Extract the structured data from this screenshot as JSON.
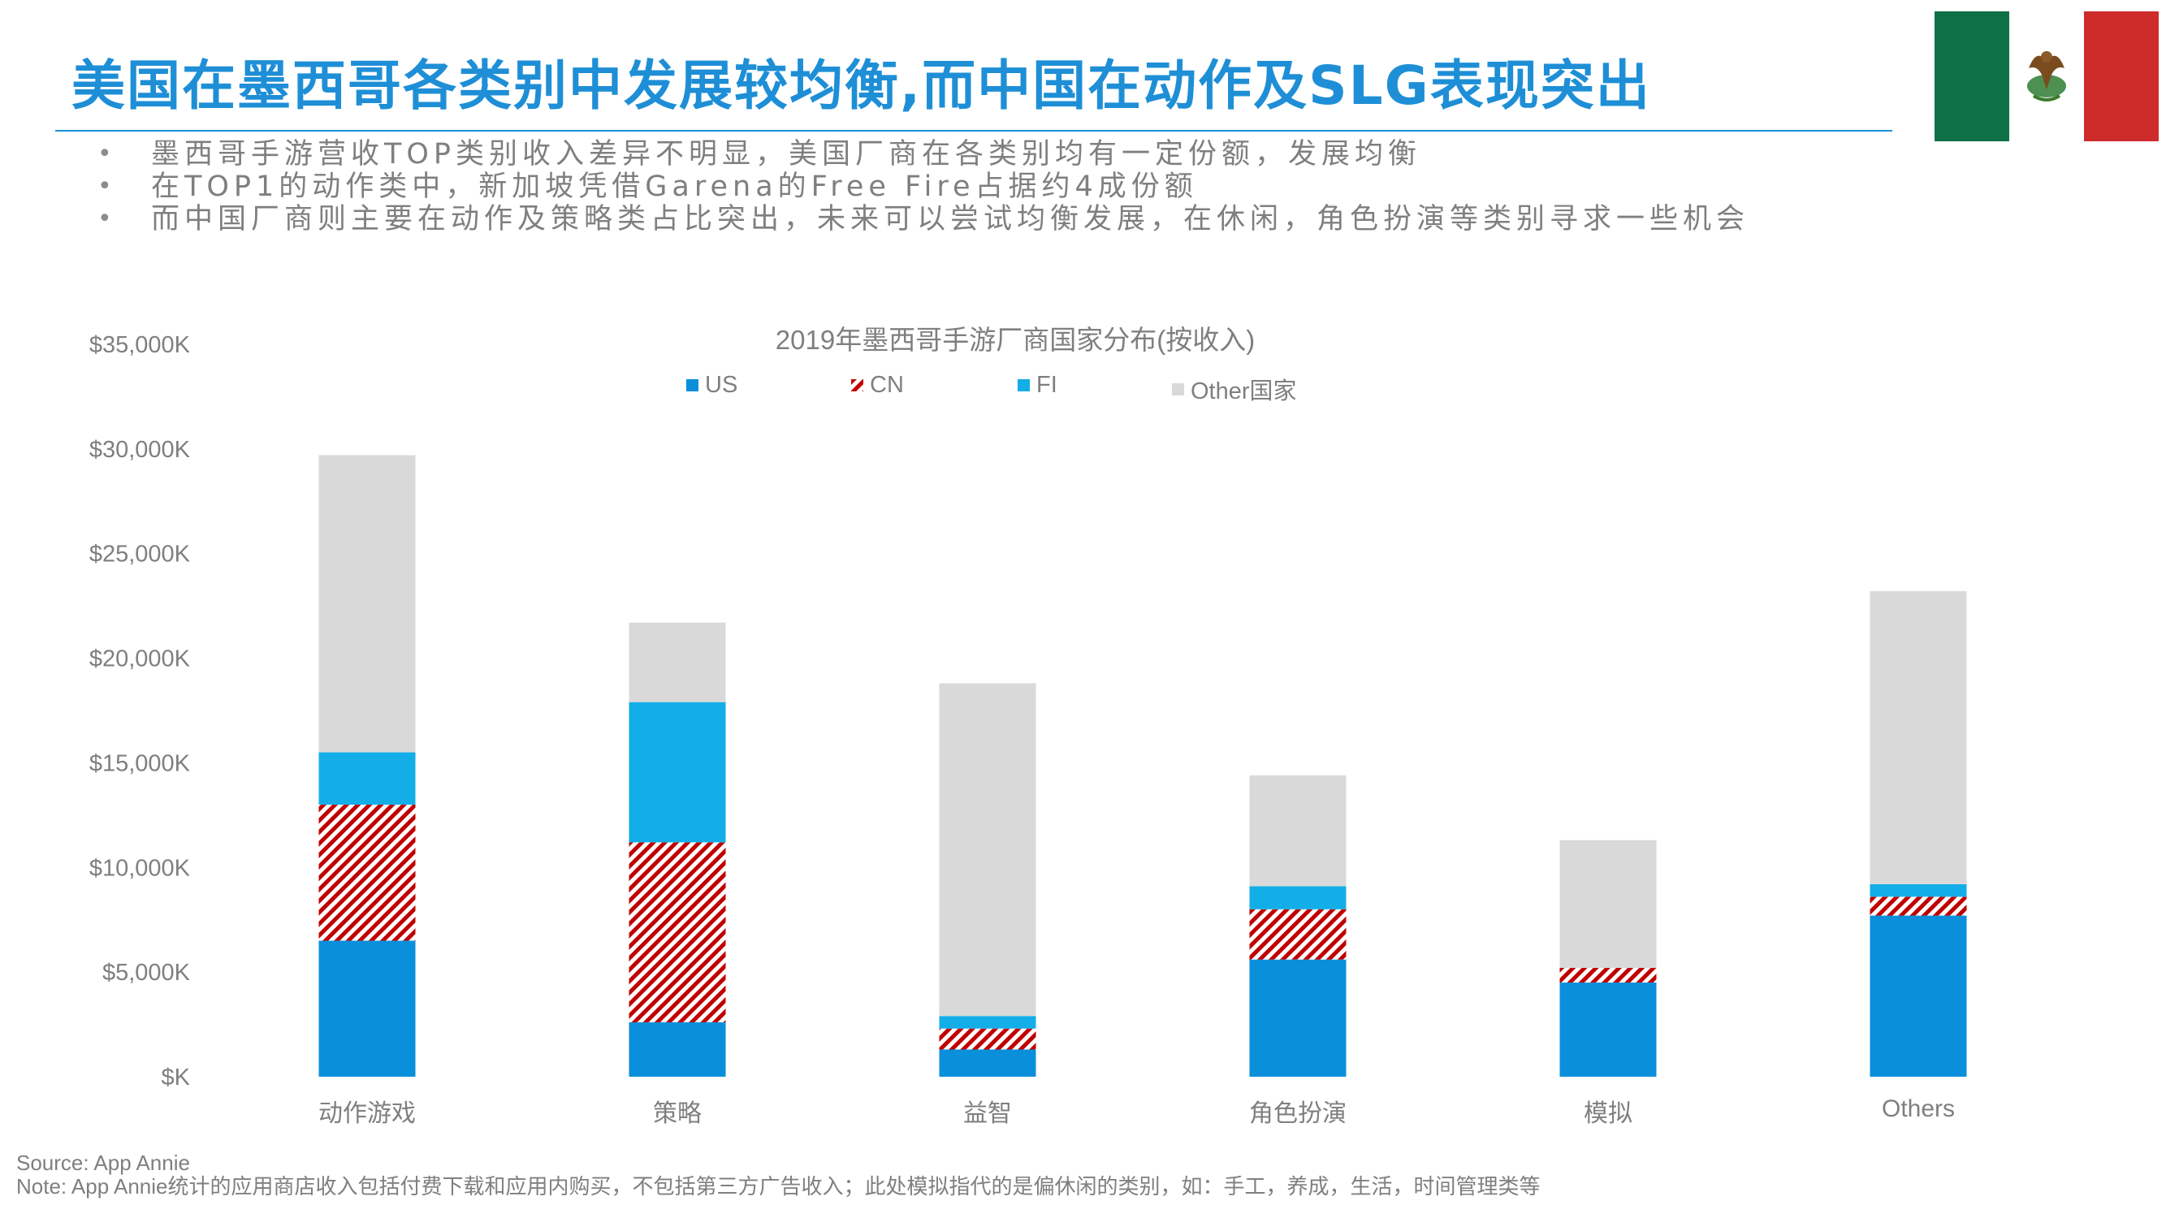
{
  "slide": {
    "title": "美国在墨西哥各类别中发展较均衡,而中国在动作及SLG表现突出",
    "bullets": [
      "墨西哥手游营收TOP类别收入差异不明显，美国厂商在各类别均有一定份额，发展均衡",
      "在TOP1的动作类中，新加坡凭借Garena的Free Fire占据约4成份额",
      "而中国厂商则主要在动作及策略类占比突出，未来可以尝试均衡发展，在休闲，角色扮演等类别寻求一些机会"
    ],
    "flag_icon": "mexico-flag-icon",
    "flag_colors": {
      "green": "#0d7047",
      "white": "#ffffff",
      "red": "#ce2b2b"
    },
    "source": "Source: App Annie",
    "note": "Note: App Annie统计的应用商店收入包括付费下载和应用内购买，不包括第三方广告收入；此处模拟指代的是偏休闲的类别，如：手工，养成，生活，时间管理类等"
  },
  "colors": {
    "accent": "#1e8fd6",
    "US": "#0a8fdb",
    "CN": "#c00000",
    "FI": "#13aee8",
    "Other": "#d9d9d9",
    "text_gray": "#7f7f7f"
  },
  "chart_data": {
    "type": "bar",
    "stacked": true,
    "title": "2019年墨西哥手游厂商国家分布(按收入)",
    "xlabel": "",
    "ylabel": "",
    "ylim": [
      0,
      35000
    ],
    "y_ticks": [
      0,
      5000,
      10000,
      15000,
      20000,
      25000,
      30000,
      35000
    ],
    "y_tick_labels": [
      "$K",
      "$5,000K",
      "$10,000K",
      "$15,000K",
      "$20,000K",
      "$25,000K",
      "$30,000K",
      "$35,000K"
    ],
    "grid": false,
    "legend_position": "top",
    "categories": [
      "动作游戏",
      "策略",
      "益智",
      "角色扮演",
      "模拟",
      "Others"
    ],
    "series": [
      {
        "name": "US",
        "values": [
          6500,
          2600,
          1300,
          5600,
          4500,
          7700
        ],
        "color": "#0a8fdb",
        "pattern": "solid"
      },
      {
        "name": "CN",
        "values": [
          6500,
          8600,
          1000,
          2400,
          700,
          900
        ],
        "color": "#c00000",
        "pattern": "diagonal-hatch"
      },
      {
        "name": "FI",
        "values": [
          2500,
          6700,
          600,
          1100,
          0,
          600
        ],
        "color": "#13aee8",
        "pattern": "solid"
      },
      {
        "name": "Other国家",
        "values": [
          14200,
          3800,
          15900,
          5300,
          6100,
          14000
        ],
        "color": "#d9d9d9",
        "pattern": "solid"
      }
    ]
  }
}
